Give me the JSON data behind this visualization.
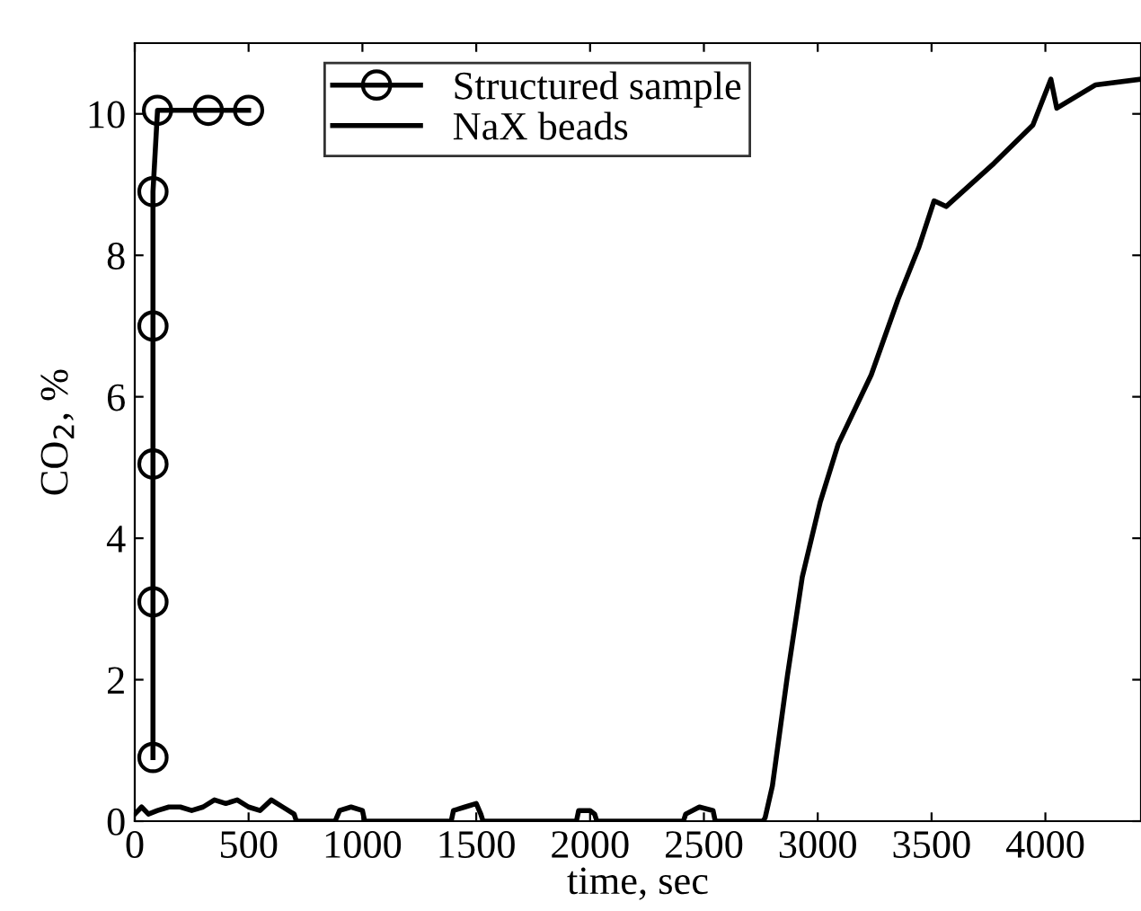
{
  "chart_data": {
    "type": "line",
    "xlabel": "time, sec",
    "ylabel": "CO$_{2}$, %",
    "xlim": [
      0,
      4420
    ],
    "ylim": [
      0,
      11
    ],
    "xticks": [
      0,
      500,
      1000,
      1500,
      2000,
      2500,
      3000,
      3500,
      4000
    ],
    "yticks": [
      0,
      2,
      4,
      6,
      8,
      10
    ],
    "grid": false,
    "legend": "top",
    "series": [
      {
        "name": "Structured sample",
        "color": "#000000",
        "marker": "circle",
        "x": [
          80,
          80,
          80,
          80,
          80,
          100,
          323,
          500
        ],
        "values": [
          0.9,
          3.1,
          5.05,
          7.0,
          8.9,
          10.05,
          10.05,
          10.05
        ]
      },
      {
        "name": "NaX beads",
        "color": "#000000",
        "marker": "none",
        "x": [
          0,
          30,
          60,
          100,
          150,
          200,
          250,
          300,
          350,
          400,
          450,
          500,
          550,
          600,
          650,
          700,
          710,
          880,
          900,
          950,
          1000,
          1010,
          1390,
          1400,
          1450,
          1500,
          1520,
          1530,
          1940,
          1950,
          2000,
          2020,
          2030,
          2410,
          2420,
          2480,
          2540,
          2550,
          2760,
          2769,
          2801,
          2867,
          2932,
          3011,
          3090,
          3235,
          3353,
          3445,
          3511,
          3564,
          3774,
          3945,
          4024,
          4050,
          4221,
          4418
        ],
        "values": [
          0.1,
          0.2,
          0.1,
          0.15,
          0.2,
          0.2,
          0.15,
          0.2,
          0.3,
          0.25,
          0.3,
          0.2,
          0.15,
          0.3,
          0.2,
          0.1,
          0,
          0,
          0.15,
          0.2,
          0.15,
          0,
          0,
          0.15,
          0.2,
          0.25,
          0.1,
          0,
          0,
          0.15,
          0.15,
          0.1,
          0,
          0,
          0.1,
          0.2,
          0.15,
          0,
          0,
          0.05,
          0.5,
          2.06,
          3.45,
          4.51,
          5.33,
          6.31,
          7.38,
          8.12,
          8.77,
          8.69,
          9.3,
          9.84,
          10.49,
          10.08,
          10.41,
          10.49
        ]
      }
    ]
  }
}
